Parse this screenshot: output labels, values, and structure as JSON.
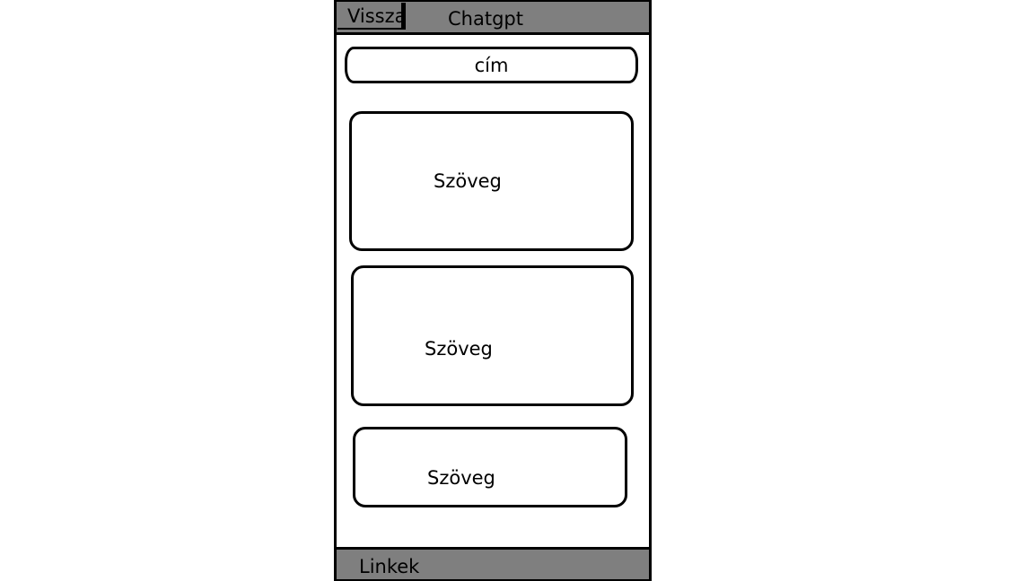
{
  "header": {
    "back_label": "Vissza",
    "app_title": "Chatgpt"
  },
  "main": {
    "title_field": "cím",
    "cards": [
      {
        "text": "Szöveg"
      },
      {
        "text": "Szöveg"
      },
      {
        "text": "Szöveg"
      }
    ]
  },
  "footer": {
    "links_label": "Linkek"
  },
  "colors": {
    "bar": "#7f7f7f",
    "border": "#000000",
    "background": "#ffffff"
  }
}
